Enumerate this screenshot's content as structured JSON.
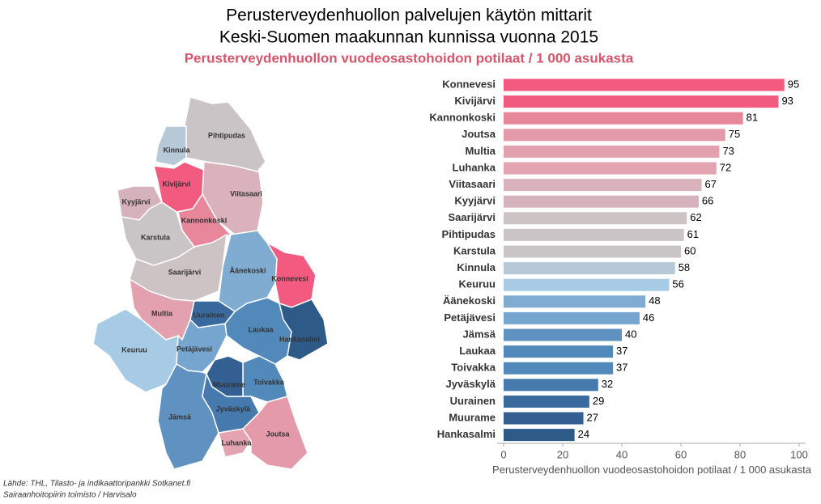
{
  "chart_data": {
    "type": "barh",
    "title": "Perusterveydenhuollon palvelujen käytön mittarit",
    "title2": "Keski-Suomen maakunnan kunnissa vuonna 2015",
    "subtitle": "Perusterveydenhuollon vuodeosastohoidon potilaat / 1 000 asukasta",
    "source": [
      "Lähde: THL, Tilasto- ja indikaattoripankki Sotkanet.fi",
      "Sairaanhoitopiirin toimisto / Harvisalo"
    ],
    "xlabel": "Perusterveydenhuollon vuodeosastohoidon potilaat / 1 000 asukasta",
    "categories": [
      "Konnevesi",
      "Kivijärvi",
      "Kannonkoski",
      "Joutsa",
      "Multia",
      "Luhanka",
      "Viitasaari",
      "Kyyjärvi",
      "Saarijärvi",
      "Pihtipudas",
      "Karstula",
      "Kinnula",
      "Keuruu",
      "Äänekoski",
      "Petäjävesi",
      "Jämsä",
      "Laukaa",
      "Toivakka",
      "Jyväskylä",
      "Uurainen",
      "Muurame",
      "Hankasalmi"
    ],
    "values": [
      95,
      93,
      81,
      75,
      73,
      72,
      67,
      66,
      62,
      61,
      60,
      58,
      56,
      48,
      46,
      40,
      37,
      37,
      32,
      29,
      27,
      24
    ],
    "colors": [
      "#f35a80",
      "#f35a80",
      "#e8879c",
      "#e49aaa",
      "#e3a0ae",
      "#e3a3b0",
      "#d9b2bb",
      "#d6b3bc",
      "#cdc3c5",
      "#cbc4c6",
      "#c9c5c7",
      "#b7c8d6",
      "#a8cbe5",
      "#80acd2",
      "#76a5cf",
      "#5f92c0",
      "#5189bb",
      "#5189bb",
      "#4679ad",
      "#3a6a9d",
      "#335f92",
      "#2e5a88"
    ],
    "xlim": [
      0,
      100
    ],
    "xticks": [
      0,
      20,
      40,
      60,
      80,
      100
    ]
  }
}
